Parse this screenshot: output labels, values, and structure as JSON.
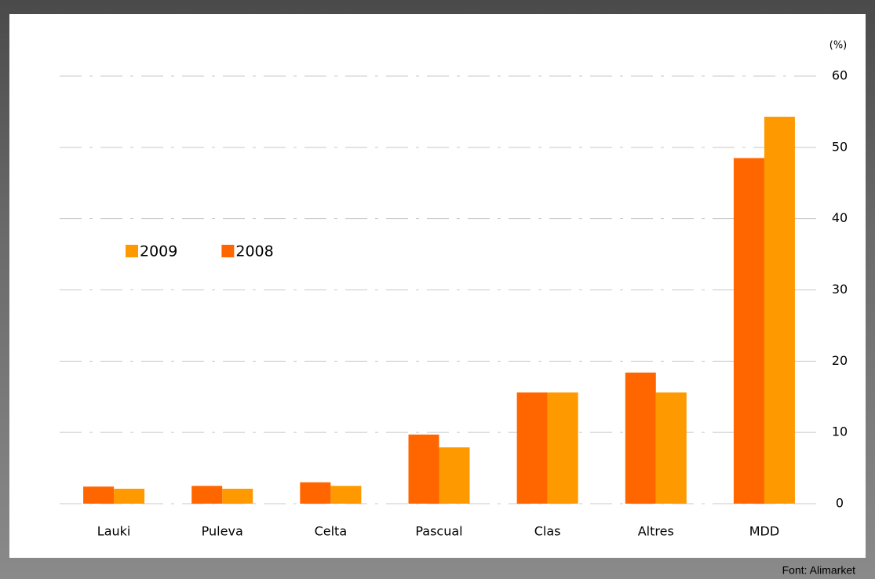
{
  "chart_data": {
    "type": "bar",
    "unit_label": "(%)",
    "source": "Font: Alimarket",
    "categories": [
      "Lauki",
      "Puleva",
      "Celta",
      "Pascual",
      "Clas",
      "Altres",
      "MDD"
    ],
    "series": [
      {
        "name": "2009",
        "color": "#ff9900",
        "values": [
          2.1,
          2.1,
          2.5,
          7.9,
          15.6,
          15.6,
          54.3
        ]
      },
      {
        "name": "2008",
        "color": "#ff6600",
        "values": [
          2.4,
          2.5,
          3.0,
          9.7,
          15.6,
          18.4,
          48.5
        ]
      }
    ],
    "ylim": [
      0,
      60
    ],
    "yticks": [
      0,
      10,
      20,
      30,
      40,
      50,
      60
    ],
    "grid": true,
    "y_axis_side": "right",
    "legend": "left"
  }
}
